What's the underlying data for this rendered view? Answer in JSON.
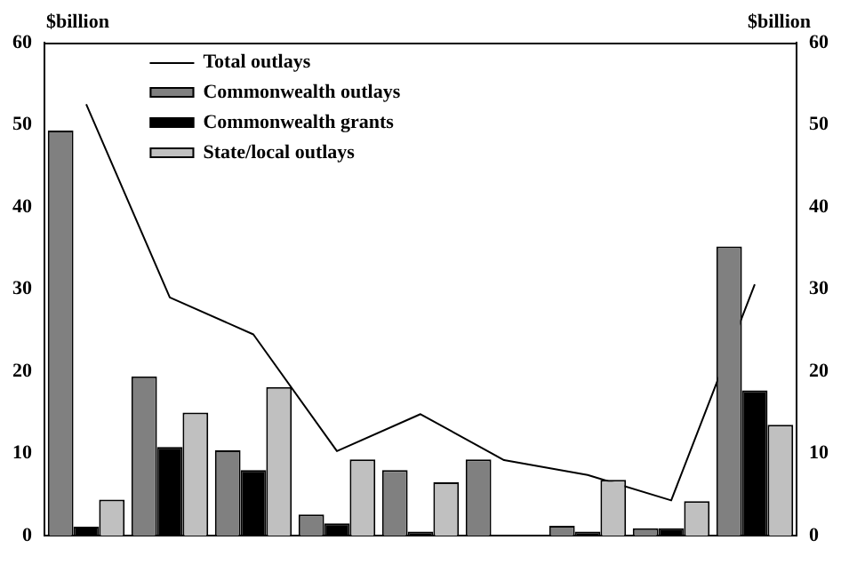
{
  "chart_data": {
    "type": "bar",
    "ylabel": "$billion",
    "y2label": "$billion",
    "categories": [
      null,
      null,
      null,
      null,
      null,
      null,
      null,
      null,
      null
    ],
    "series": [
      {
        "name": "Total outlays",
        "type": "line",
        "color": "#000000",
        "values": [
          52.5,
          29,
          24.5,
          10.3,
          14.8,
          9.2,
          7.4,
          4.3,
          30.6
        ]
      },
      {
        "name": "Commonwealth outlays",
        "color": "#808080",
        "values": [
          49.3,
          19.4,
          10.4,
          2.6,
          8.0,
          9.3,
          1.2,
          0.9,
          35.2
        ]
      },
      {
        "name": "Commonwealth grants",
        "color": "#000000",
        "values": [
          1.1,
          10.8,
          8.0,
          1.5,
          0.5,
          null,
          0.5,
          0.9,
          17.7
        ]
      },
      {
        "name": "State/local outlays",
        "color": "#c0c0c0",
        "values": [
          4.4,
          15.0,
          18.1,
          9.3,
          6.5,
          null,
          6.8,
          4.2,
          13.5
        ]
      }
    ],
    "ylim": [
      0,
      60
    ],
    "yticks": [
      0,
      10,
      20,
      30,
      40,
      50,
      60
    ],
    "y2lim": [
      0,
      60
    ],
    "y2ticks": [
      0,
      10,
      20,
      30,
      40,
      50,
      60
    ],
    "grid": false,
    "legend": "top",
    "marker": "none"
  }
}
